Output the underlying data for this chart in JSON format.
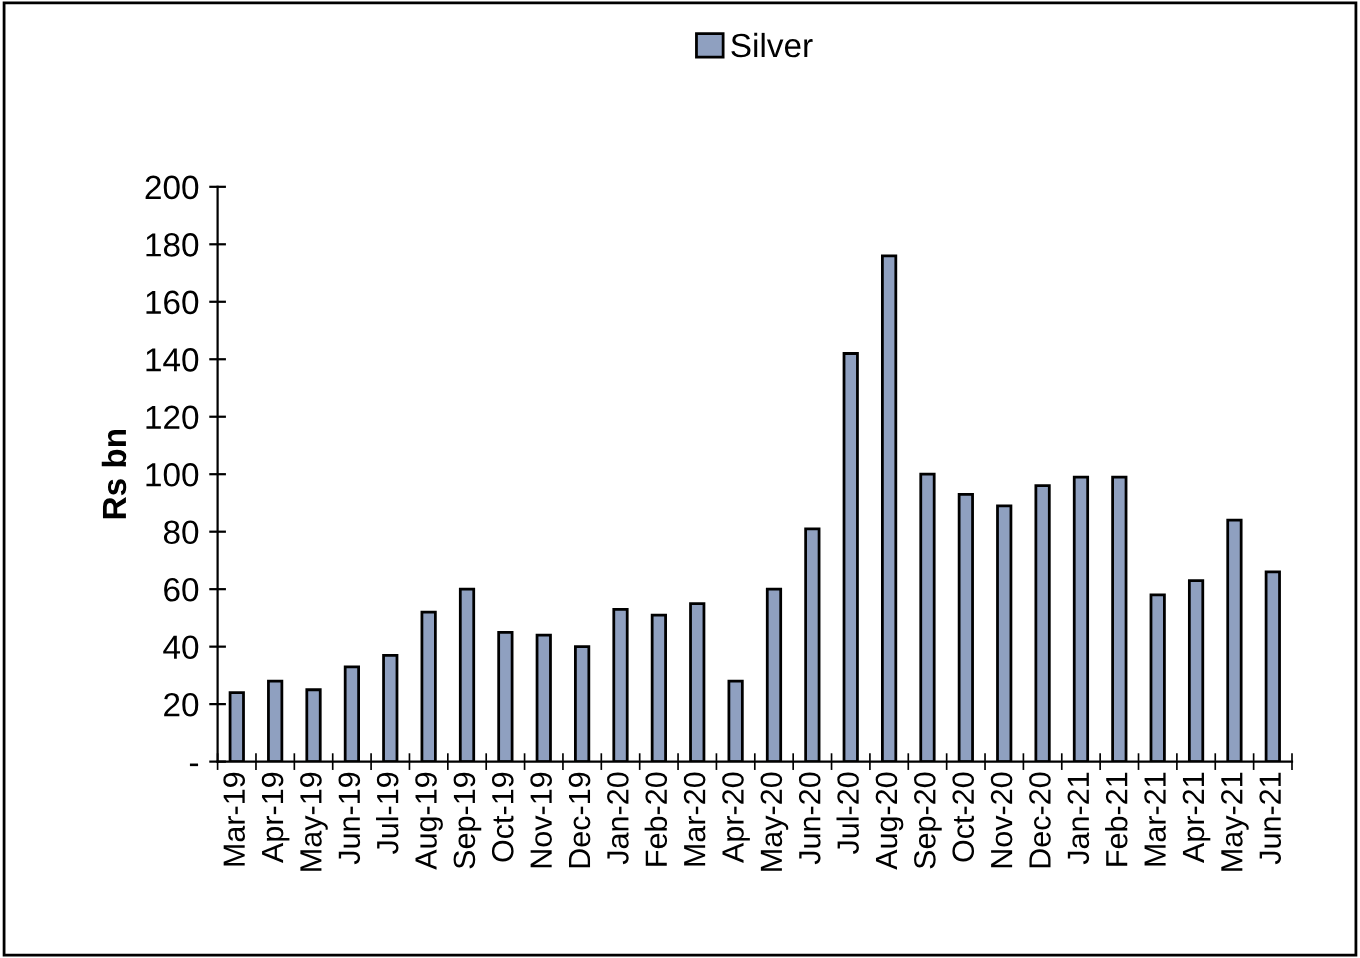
{
  "chart_data": {
    "type": "bar",
    "ylabel": "Rs bn",
    "categories": [
      "Mar-19",
      "Apr-19",
      "May-19",
      "Jun-19",
      "Jul-19",
      "Aug-19",
      "Sep-19",
      "Oct-19",
      "Nov-19",
      "Dec-19",
      "Jan-20",
      "Feb-20",
      "Mar-20",
      "Apr-20",
      "May-20",
      "Jun-20",
      "Jul-20",
      "Aug-20",
      "Sep-20",
      "Oct-20",
      "Nov-20",
      "Dec-20",
      "Jan-21",
      "Feb-21",
      "Mar-21",
      "Apr-21",
      "May-21",
      "Jun-21"
    ],
    "series": [
      {
        "name": "Silver",
        "color": "#8fa0c0",
        "values": [
          24,
          28,
          25,
          33,
          37,
          52,
          60,
          45,
          44,
          40,
          53,
          51,
          55,
          28,
          60,
          81,
          142,
          176,
          100,
          93,
          89,
          96,
          99,
          99,
          58,
          63,
          84,
          66
        ]
      }
    ],
    "ylim": [
      0,
      200
    ],
    "yticks": [
      {
        "value": 0,
        "label": "-"
      },
      20,
      40,
      60,
      80,
      100,
      120,
      140,
      160,
      180,
      200
    ],
    "grid": false,
    "legend": "top"
  }
}
